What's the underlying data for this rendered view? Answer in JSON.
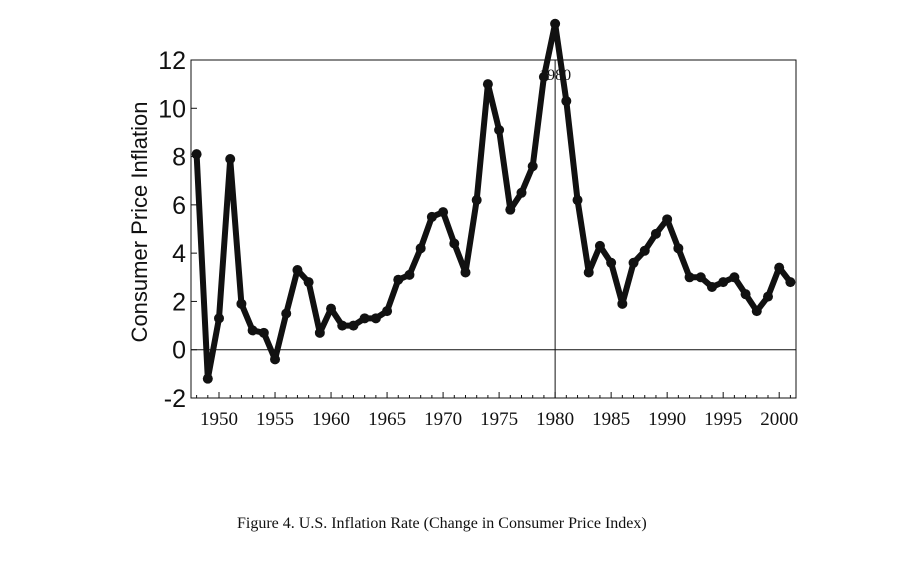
{
  "chart_data": {
    "type": "line",
    "ylabel": "Consumer Price Inflation",
    "xlabel": "",
    "xlim": [
      1947.5,
      2001.5
    ],
    "ylim": [
      -2,
      12
    ],
    "y_ticks": [
      -2,
      0,
      2,
      4,
      6,
      8,
      10,
      12
    ],
    "x_ticks": [
      1950,
      1955,
      1960,
      1965,
      1970,
      1975,
      1980,
      1985,
      1990,
      1995,
      2000
    ],
    "reference_lines": {
      "horizontal_y": 0,
      "vertical_x": 1980
    },
    "annotation": {
      "text": "1980",
      "x": 1980
    },
    "grid": false,
    "line_color": "#111111",
    "series": [
      {
        "x": [
          1948,
          1949,
          1950,
          1951,
          1952,
          1953,
          1954,
          1955,
          1956,
          1957,
          1958,
          1959,
          1960,
          1961,
          1962,
          1963,
          1964,
          1965,
          1966,
          1967,
          1968,
          1969,
          1970,
          1971,
          1972,
          1973,
          1974,
          1975,
          1976,
          1977,
          1978,
          1979,
          1980,
          1981,
          1982,
          1983,
          1984,
          1985,
          1986,
          1987,
          1988,
          1989,
          1990,
          1991,
          1992,
          1993,
          1994,
          1995,
          1996,
          1997,
          1998,
          1999,
          2000,
          2001
        ],
        "values": [
          8.1,
          -1.2,
          1.3,
          7.9,
          1.9,
          0.8,
          0.7,
          -0.4,
          1.5,
          3.3,
          2.8,
          0.7,
          1.7,
          1.0,
          1.0,
          1.3,
          1.3,
          1.6,
          2.9,
          3.1,
          4.2,
          5.5,
          5.7,
          4.4,
          3.2,
          6.2,
          11.0,
          9.1,
          5.8,
          6.5,
          7.6,
          11.3,
          13.5,
          10.3,
          6.2,
          3.2,
          4.3,
          3.6,
          1.9,
          3.6,
          4.1,
          4.8,
          5.4,
          4.2,
          3.0,
          3.0,
          2.6,
          2.8,
          3.0,
          2.3,
          1.6,
          2.2,
          3.4,
          2.8
        ]
      }
    ]
  },
  "caption": "Figure 4.  U.S. Inflation Rate (Change in Consumer Price Index)"
}
